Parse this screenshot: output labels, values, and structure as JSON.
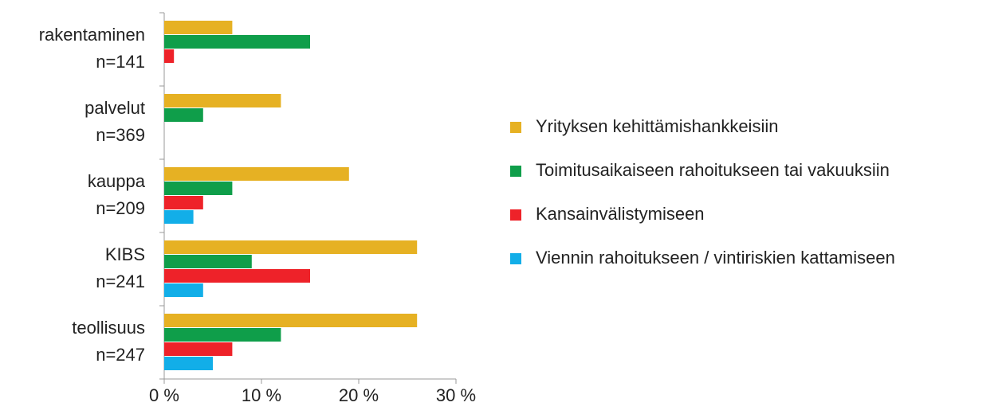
{
  "chart_data": {
    "type": "bar",
    "orientation": "horizontal",
    "categories": [
      [
        "rakentaminen",
        "n=141"
      ],
      [
        "palvelut",
        "n=369"
      ],
      [
        "kauppa",
        "n=209"
      ],
      [
        "KIBS",
        "n=241"
      ],
      [
        "teollisuus",
        "n=247"
      ]
    ],
    "series": [
      {
        "name": "Yrityksen kehittämishankkeisiin",
        "color": "#e6b123",
        "values": [
          7,
          12,
          19,
          26,
          26
        ]
      },
      {
        "name": "Toimitusaikaiseen rahoitukseen tai vakuuksiin",
        "color": "#0f9e4a",
        "values": [
          15,
          4,
          7,
          9,
          12
        ]
      },
      {
        "name": "Kansainvälistymiseen",
        "color": "#ee2229",
        "values": [
          1,
          null,
          4,
          15,
          7
        ]
      },
      {
        "name": "Viennin rahoitukseen / vintiriskien kattamiseen",
        "color": "#12aee8",
        "values": [
          null,
          null,
          3,
          4,
          5
        ]
      }
    ],
    "xlim": [
      0,
      30
    ],
    "xticks": [
      {
        "value": 0,
        "label": "0 %"
      },
      {
        "value": 10,
        "label": "10 %"
      },
      {
        "value": 20,
        "label": "20 %"
      },
      {
        "value": 30,
        "label": "30 %"
      }
    ],
    "grid": false,
    "legend": "right"
  }
}
